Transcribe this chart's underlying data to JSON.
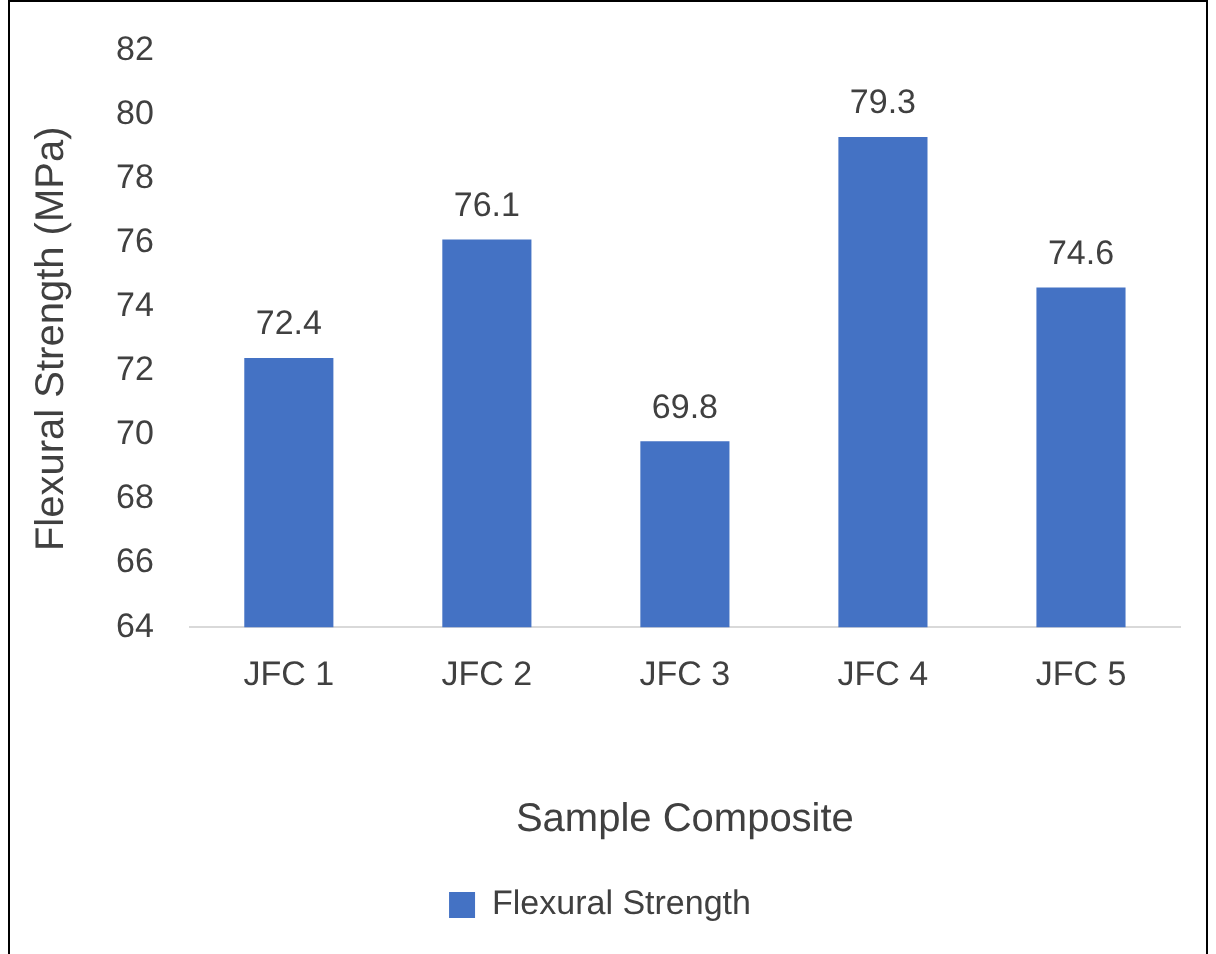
{
  "chart_data": {
    "type": "bar",
    "xlabel": "Sample Composite",
    "ylabel": "Flexural Strength (MPa)",
    "categories": [
      "JFC 1",
      "JFC 2",
      "JFC 3",
      "JFC 4",
      "JFC 5"
    ],
    "series": [
      {
        "name": "Flexural Strength",
        "color": "#4472c4",
        "values": [
          72.4,
          76.1,
          69.8,
          79.3,
          74.6
        ]
      }
    ],
    "ylim": [
      64,
      82
    ],
    "yticks": [
      64,
      66,
      68,
      70,
      72,
      74,
      76,
      78,
      80,
      82
    ],
    "grid": false,
    "legend": "bottom",
    "data_labels": true
  }
}
